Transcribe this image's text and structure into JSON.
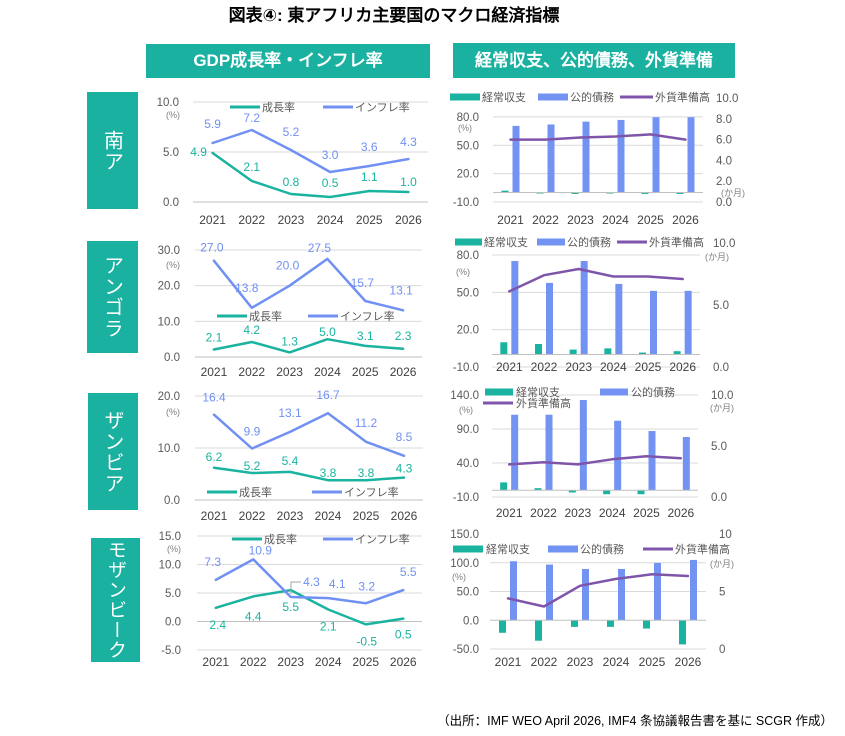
{
  "title": "図表④: 東アフリカ主要国のマクロ経済指標",
  "headers": {
    "growth_inflation": "GDP成長率・インフレ率",
    "external": "経常収支、公的債務、外貨準備"
  },
  "countries": [
    {
      "name": "南ア"
    },
    {
      "name": "アンゴラ"
    },
    {
      "name": "ザンビア"
    },
    {
      "name": "モザンビーク"
    }
  ],
  "source": "（出所：IMF WEO April 2026, IMF4 条協議報告書を基に SCGR 作成）",
  "colors": {
    "accent": "#1bb1a0",
    "growth": "#1ab3a0",
    "inflation": "#7090f3",
    "current_account": "#1ab3a0",
    "public_debt": "#7393f3",
    "fx_reserves": "#7e55aa",
    "gridline": "#d9d9d9"
  },
  "chart_data": [
    {
      "type": "line",
      "country": "南ア",
      "title": "GDP成長率・インフレ率",
      "categories": [
        "2021",
        "2022",
        "2023",
        "2024",
        "2025",
        "2026"
      ],
      "ylim": [
        0,
        10
      ],
      "yticks": [
        0,
        5,
        10
      ],
      "ytick_labels": [
        "0.0",
        "5.0",
        "10.0"
      ],
      "yunit": "(%)",
      "grid": true,
      "legend": "top",
      "series": [
        {
          "name": "成長率",
          "color": "#1ab3a0",
          "values": [
            4.9,
            2.1,
            0.8,
            0.5,
            1.1,
            1.0
          ],
          "labels": [
            "4.9",
            "2.1",
            "0.8",
            "0.5",
            "1.1",
            "1.0"
          ]
        },
        {
          "name": "インフレ率",
          "color": "#7090f3",
          "values": [
            5.9,
            7.2,
            5.2,
            3.0,
            3.6,
            4.3
          ],
          "labels": [
            "5.9",
            "7.2",
            "5.2",
            "3.0",
            "3.6",
            "4.3"
          ]
        }
      ]
    },
    {
      "type": "bar+line",
      "country": "南ア",
      "title": "経常収支、公的債務、外貨準備",
      "categories": [
        "2021",
        "2022",
        "2023",
        "2024",
        "2025",
        "2026"
      ],
      "ylim_left": [
        -10,
        100
      ],
      "yticks_left": [
        -10,
        20,
        50,
        80
      ],
      "ytick_labels_left": [
        "-10.0",
        "20.0",
        "50.0",
        "80.0"
      ],
      "yunit_left": "(%)",
      "ylim_right": [
        0,
        10
      ],
      "yticks_right": [
        0,
        2,
        4,
        6,
        8,
        10
      ],
      "ytick_labels_right": [
        "0.0",
        "2.0",
        "4.0",
        "6.0",
        "8.0",
        "10.0"
      ],
      "yunit_right": "(か月)",
      "grid": true,
      "legend": "top",
      "series": [
        {
          "name": "経常収支",
          "type": "bar",
          "axis": "left",
          "color": "#1ab3a0",
          "values": [
            2.0,
            -1.0,
            -1.5,
            -1.0,
            -1.5,
            -1.5
          ]
        },
        {
          "name": "公的債務",
          "type": "bar",
          "axis": "left",
          "color": "#7393f3",
          "values": [
            70.5,
            72.0,
            75.0,
            76.8,
            79.7,
            79.7
          ]
        },
        {
          "name": "外貨準備高",
          "type": "line",
          "axis": "right",
          "color": "#7e55aa",
          "values": [
            6.0,
            6.0,
            6.2,
            6.3,
            6.5,
            6.0
          ]
        }
      ]
    },
    {
      "type": "line",
      "country": "アンゴラ",
      "title": "GDP成長率・インフレ率",
      "categories": [
        "2021",
        "2022",
        "2023",
        "2024",
        "2025",
        "2026"
      ],
      "ylim": [
        0,
        30
      ],
      "yticks": [
        0,
        10,
        20,
        30
      ],
      "ytick_labels": [
        "0.0",
        "10.0",
        "20.0",
        "30.0"
      ],
      "yunit": "(%)",
      "grid": true,
      "legend": "middle",
      "series": [
        {
          "name": "成長率",
          "color": "#1ab3a0",
          "values": [
            2.1,
            4.2,
            1.3,
            5.0,
            3.1,
            2.3
          ],
          "labels": [
            "2.1",
            "4.2",
            "1.3",
            "5.0",
            "3.1",
            "2.3"
          ]
        },
        {
          "name": "インフレ率",
          "color": "#7090f3",
          "values": [
            27.0,
            13.8,
            20.0,
            27.5,
            15.7,
            13.1
          ],
          "labels": [
            "27.0",
            "13.8",
            "20.0",
            "27.5",
            "15.7",
            "13.1"
          ]
        }
      ]
    },
    {
      "type": "bar+line",
      "country": "アンゴラ",
      "title": "経常収支、公的債務、外貨準備",
      "categories": [
        "2021",
        "2022",
        "2023",
        "2024",
        "2025",
        "2026"
      ],
      "ylim_left": [
        -10,
        90
      ],
      "yticks_left": [
        -10,
        20,
        50,
        80
      ],
      "ytick_labels_left": [
        "-10.0",
        "20.0",
        "50.0",
        "80.0"
      ],
      "yunit_left": "(%)",
      "ylim_right": [
        0,
        10
      ],
      "yticks_right": [
        0,
        5,
        10
      ],
      "ytick_labels_right": [
        "0.0",
        "5.0",
        "10.0"
      ],
      "yunit_right": "(か月)",
      "grid": true,
      "legend": "top",
      "series": [
        {
          "name": "経常収支",
          "type": "bar",
          "axis": "left",
          "color": "#1ab3a0",
          "values": [
            9.9,
            8.5,
            4.0,
            5.0,
            1.6,
            2.7
          ]
        },
        {
          "name": "公的債務",
          "type": "bar",
          "axis": "left",
          "color": "#7393f3",
          "values": [
            75.2,
            57.6,
            75.2,
            56.8,
            51.2,
            51.2
          ]
        },
        {
          "name": "外貨準備高",
          "type": "line",
          "axis": "right",
          "color": "#7e55aa",
          "values": [
            6.1,
            7.4,
            7.9,
            7.3,
            7.3,
            7.1
          ]
        }
      ]
    },
    {
      "type": "line",
      "country": "ザンビア",
      "title": "GDP成長率・インフレ率",
      "categories": [
        "2021",
        "2022",
        "2023",
        "2024",
        "2025",
        "2026"
      ],
      "ylim": [
        0,
        20
      ],
      "yticks": [
        0,
        10,
        20
      ],
      "ytick_labels": [
        "0.0",
        "10.0",
        "20.0"
      ],
      "yunit": "(%)",
      "grid": true,
      "legend": "bottom",
      "series": [
        {
          "name": "成長率",
          "color": "#1ab3a0",
          "values": [
            6.2,
            5.2,
            5.4,
            3.8,
            3.8,
            4.3
          ],
          "labels": [
            "6.2",
            "5.2",
            "5.4",
            "3.8",
            "3.8",
            "4.3"
          ]
        },
        {
          "name": "インフレ率",
          "color": "#7090f3",
          "values": [
            16.4,
            9.9,
            13.1,
            16.7,
            11.2,
            8.5
          ],
          "labels": [
            "16.4",
            "9.9",
            "13.1",
            "16.7",
            "11.2",
            "8.5"
          ]
        }
      ]
    },
    {
      "type": "bar+line",
      "country": "ザンビア",
      "title": "経常収支、公的債務、外貨準備",
      "categories": [
        "2021",
        "2022",
        "2023",
        "2024",
        "2025",
        "2026"
      ],
      "ylim_left": [
        -10,
        140
      ],
      "yticks_left": [
        -10,
        40,
        90,
        140
      ],
      "ytick_labels_left": [
        "-10.0",
        "40.0",
        "90.0",
        "140.0"
      ],
      "yunit_left": "(%)",
      "ylim_right": [
        0,
        10
      ],
      "yticks_right": [
        0,
        5,
        10
      ],
      "ytick_labels_right": [
        "0.0",
        "5.0",
        "10.0"
      ],
      "yunit_right": "(か月)",
      "grid": true,
      "legend": "top",
      "series": [
        {
          "name": "経常収支",
          "type": "bar",
          "axis": "left",
          "color": "#1ab3a0",
          "values": [
            11.5,
            3.0,
            -3.4,
            -5.9,
            -5.9,
            0.0
          ]
        },
        {
          "name": "公的債務",
          "type": "bar",
          "axis": "left",
          "color": "#7393f3",
          "values": [
            111.0,
            111.0,
            132.6,
            102.2,
            87.0,
            78.2
          ]
        },
        {
          "name": "外貨準備高",
          "type": "line",
          "axis": "right",
          "color": "#7e55aa",
          "values": [
            3.2,
            3.4,
            3.2,
            3.7,
            4.0,
            3.8
          ]
        }
      ]
    },
    {
      "type": "line",
      "country": "モザンビーク",
      "title": "GDP成長率・インフレ率",
      "categories": [
        "2021",
        "2022",
        "2023",
        "2024",
        "2025",
        "2026"
      ],
      "ylim": [
        -5,
        15
      ],
      "yticks": [
        -5,
        0,
        5,
        10,
        15
      ],
      "ytick_labels": [
        "-5.0",
        "0.0",
        "5.0",
        "10.0",
        "15.0"
      ],
      "yunit": "(%)",
      "grid": true,
      "legend": "top",
      "series": [
        {
          "name": "成長率",
          "color": "#1ab3a0",
          "values": [
            2.4,
            4.4,
            5.5,
            2.1,
            -0.5,
            0.5
          ],
          "labels": [
            "2.4",
            "4.4",
            "5.5",
            "2.1",
            "-0.5",
            "0.5"
          ]
        },
        {
          "name": "インフレ率",
          "color": "#7090f3",
          "values": [
            7.3,
            10.9,
            4.3,
            4.1,
            3.2,
            5.5
          ],
          "labels": [
            "7.3",
            "10.9",
            "4.3",
            "4.1",
            "3.2",
            "5.5"
          ]
        }
      ]
    },
    {
      "type": "bar+line",
      "country": "モザンビーク",
      "title": "経常収支、公的債務、外貨準備",
      "categories": [
        "2021",
        "2022",
        "2023",
        "2024",
        "2025",
        "2026"
      ],
      "ylim_left": [
        -50,
        150
      ],
      "yticks_left": [
        -50,
        0,
        50,
        100,
        150
      ],
      "ytick_labels_left": [
        "-50.0",
        "0.0",
        "50.0",
        "100.0",
        "150.0"
      ],
      "yunit_left": "(%)",
      "ylim_right": [
        0,
        10
      ],
      "yticks_right": [
        0,
        5,
        10
      ],
      "ytick_labels_right": [
        "0",
        "5",
        "10"
      ],
      "yunit_right": "(か月)",
      "grid": true,
      "legend": "top",
      "series": [
        {
          "name": "経常収支",
          "type": "bar",
          "axis": "left",
          "color": "#1ab3a0",
          "values": [
            -21.8,
            -35.6,
            -11.5,
            -11.5,
            -14.4,
            -42.0
          ]
        },
        {
          "name": "公的債務",
          "type": "bar",
          "axis": "left",
          "color": "#7393f3",
          "values": [
            102.6,
            96.8,
            89.2,
            89.2,
            99.7,
            104.9
          ]
        },
        {
          "name": "外貨準備高",
          "type": "line",
          "axis": "right",
          "color": "#7e55aa",
          "values": [
            4.4,
            3.7,
            5.5,
            6.1,
            6.5,
            6.35
          ]
        }
      ]
    }
  ]
}
